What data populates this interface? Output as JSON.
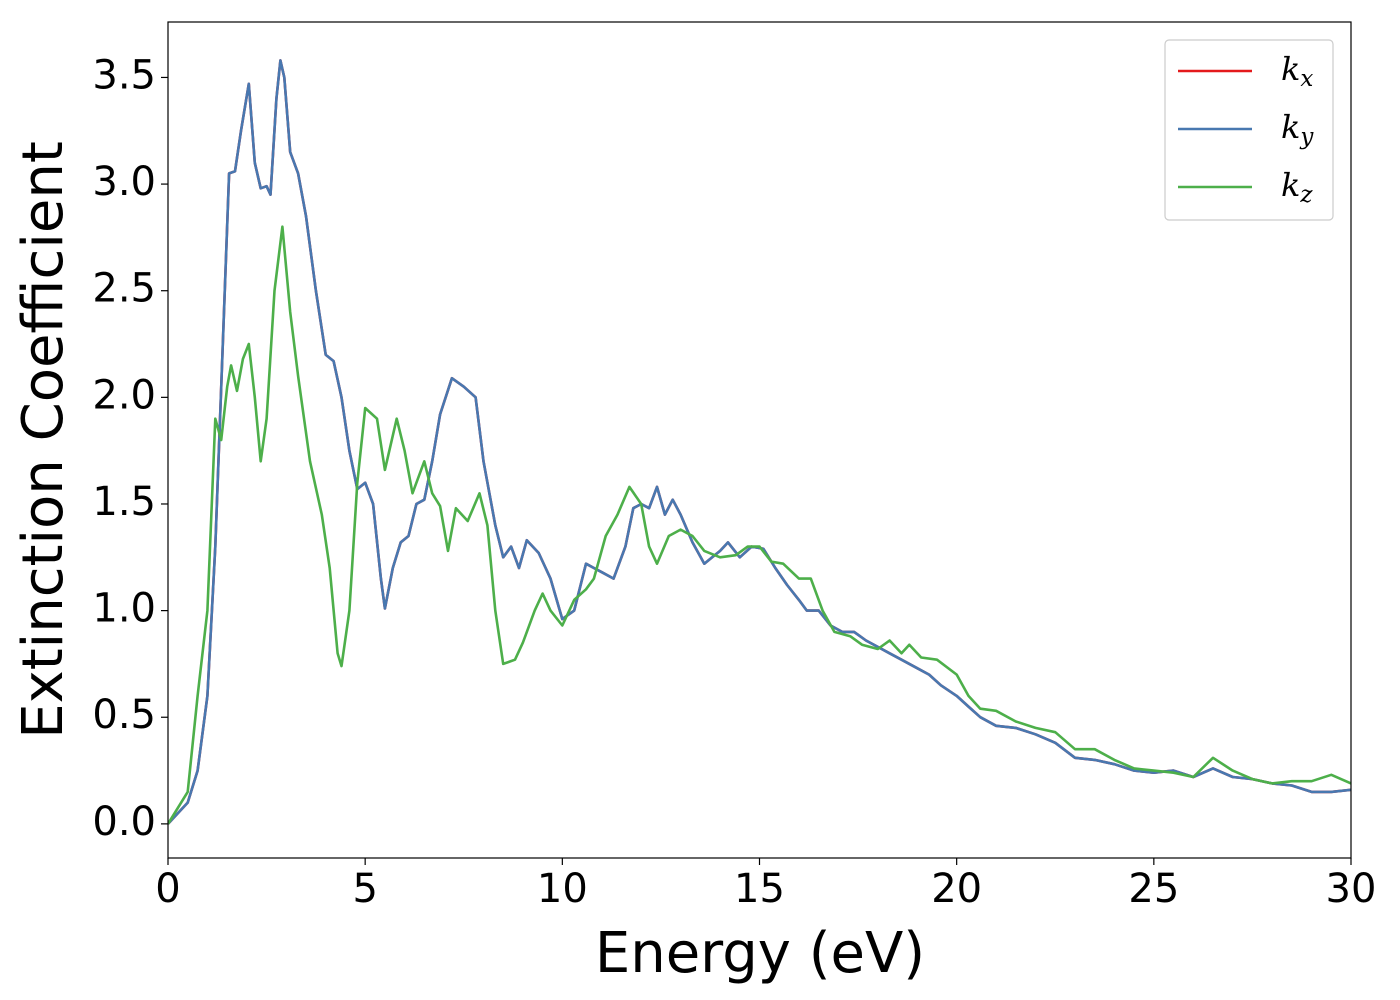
{
  "chart_data": {
    "type": "line",
    "xlabel": "Energy (eV)",
    "ylabel": "Extinction Coefficient",
    "xlim": [
      0,
      30
    ],
    "ylim": [
      -0.16,
      3.76
    ],
    "xticks": [
      0,
      5,
      10,
      15,
      20,
      25,
      30
    ],
    "yticks": [
      {
        "value": 0,
        "label": "0.0"
      },
      0.5,
      {
        "value": 1,
        "label": "1.0"
      },
      1.5,
      {
        "value": 2,
        "label": "2.0"
      },
      2.5,
      {
        "value": 3,
        "label": "3.0"
      },
      3.5
    ],
    "legend": "upper right",
    "series": [
      {
        "name": "kx",
        "color": "#e41a1c",
        "x": [
          0,
          0.5,
          0.75,
          1.0,
          1.2,
          1.4,
          1.55,
          1.7,
          1.85,
          2.05,
          2.2,
          2.35,
          2.5,
          2.6,
          2.75,
          2.85,
          2.95,
          3.1,
          3.3,
          3.5,
          3.75,
          4.0,
          4.2,
          4.4,
          4.6,
          4.8,
          5.0,
          5.2,
          5.4,
          5.5,
          5.7,
          5.9,
          6.1,
          6.3,
          6.5,
          6.7,
          6.9,
          7.2,
          7.5,
          7.8,
          8.0,
          8.3,
          8.5,
          8.7,
          8.9,
          9.1,
          9.4,
          9.7,
          10.0,
          10.3,
          10.6,
          10.8,
          11.0,
          11.3,
          11.6,
          11.8,
          12.0,
          12.2,
          12.4,
          12.6,
          12.8,
          13.0,
          13.3,
          13.6,
          13.8,
          14.0,
          14.2,
          14.5,
          14.8,
          15.1,
          15.4,
          15.7,
          16.0,
          16.2,
          16.5,
          16.8,
          17.1,
          17.4,
          17.7,
          18.0,
          18.3,
          18.6,
          19.0,
          19.3,
          19.6,
          20.0,
          20.3,
          20.6,
          21.0,
          21.5,
          22.0,
          22.5,
          23.0,
          23.5,
          24.0,
          24.5,
          25.0,
          25.5,
          26.0,
          26.5,
          27.0,
          27.5,
          28.0,
          28.5,
          29.0,
          29.5,
          30
        ],
        "values": [
          0,
          0.1,
          0.25,
          0.6,
          1.3,
          2.3,
          3.05,
          3.06,
          3.25,
          3.47,
          3.1,
          2.98,
          2.99,
          2.95,
          3.4,
          3.58,
          3.5,
          3.15,
          3.05,
          2.85,
          2.5,
          2.2,
          2.17,
          2.0,
          1.75,
          1.57,
          1.6,
          1.5,
          1.15,
          1.01,
          1.2,
          1.32,
          1.35,
          1.5,
          1.52,
          1.7,
          1.92,
          2.09,
          2.05,
          2.0,
          1.7,
          1.4,
          1.25,
          1.3,
          1.2,
          1.33,
          1.27,
          1.15,
          0.96,
          1.0,
          1.22,
          1.2,
          1.18,
          1.15,
          1.3,
          1.48,
          1.5,
          1.48,
          1.58,
          1.45,
          1.52,
          1.45,
          1.32,
          1.22,
          1.25,
          1.28,
          1.32,
          1.25,
          1.3,
          1.29,
          1.2,
          1.12,
          1.05,
          1.0,
          1.0,
          0.93,
          0.9,
          0.9,
          0.86,
          0.83,
          0.8,
          0.77,
          0.73,
          0.7,
          0.65,
          0.6,
          0.55,
          0.5,
          0.46,
          0.45,
          0.42,
          0.38,
          0.31,
          0.3,
          0.28,
          0.25,
          0.24,
          0.25,
          0.22,
          0.26,
          0.22,
          0.21,
          0.19,
          0.18,
          0.15,
          0.15,
          0.16
        ]
      },
      {
        "name": "ky",
        "color": "#4878b0",
        "x": [
          0,
          0.5,
          0.75,
          1.0,
          1.2,
          1.4,
          1.55,
          1.7,
          1.85,
          2.05,
          2.2,
          2.35,
          2.5,
          2.6,
          2.75,
          2.85,
          2.95,
          3.1,
          3.3,
          3.5,
          3.75,
          4.0,
          4.2,
          4.4,
          4.6,
          4.8,
          5.0,
          5.2,
          5.4,
          5.5,
          5.7,
          5.9,
          6.1,
          6.3,
          6.5,
          6.7,
          6.9,
          7.2,
          7.5,
          7.8,
          8.0,
          8.3,
          8.5,
          8.7,
          8.9,
          9.1,
          9.4,
          9.7,
          10.0,
          10.3,
          10.6,
          10.8,
          11.0,
          11.3,
          11.6,
          11.8,
          12.0,
          12.2,
          12.4,
          12.6,
          12.8,
          13.0,
          13.3,
          13.6,
          13.8,
          14.0,
          14.2,
          14.5,
          14.8,
          15.1,
          15.4,
          15.7,
          16.0,
          16.2,
          16.5,
          16.8,
          17.1,
          17.4,
          17.7,
          18.0,
          18.3,
          18.6,
          19.0,
          19.3,
          19.6,
          20.0,
          20.3,
          20.6,
          21.0,
          21.5,
          22.0,
          22.5,
          23.0,
          23.5,
          24.0,
          24.5,
          25.0,
          25.5,
          26.0,
          26.5,
          27.0,
          27.5,
          28.0,
          28.5,
          29.0,
          29.5,
          30
        ],
        "values": [
          0,
          0.1,
          0.25,
          0.6,
          1.3,
          2.3,
          3.05,
          3.06,
          3.25,
          3.47,
          3.1,
          2.98,
          2.99,
          2.95,
          3.4,
          3.58,
          3.5,
          3.15,
          3.05,
          2.85,
          2.5,
          2.2,
          2.17,
          2.0,
          1.75,
          1.57,
          1.6,
          1.5,
          1.15,
          1.01,
          1.2,
          1.32,
          1.35,
          1.5,
          1.52,
          1.7,
          1.92,
          2.09,
          2.05,
          2.0,
          1.7,
          1.4,
          1.25,
          1.3,
          1.2,
          1.33,
          1.27,
          1.15,
          0.96,
          1.0,
          1.22,
          1.2,
          1.18,
          1.15,
          1.3,
          1.48,
          1.5,
          1.48,
          1.58,
          1.45,
          1.52,
          1.45,
          1.32,
          1.22,
          1.25,
          1.28,
          1.32,
          1.25,
          1.3,
          1.29,
          1.2,
          1.12,
          1.05,
          1.0,
          1.0,
          0.93,
          0.9,
          0.9,
          0.86,
          0.83,
          0.8,
          0.77,
          0.73,
          0.7,
          0.65,
          0.6,
          0.55,
          0.5,
          0.46,
          0.45,
          0.42,
          0.38,
          0.31,
          0.3,
          0.28,
          0.25,
          0.24,
          0.25,
          0.22,
          0.26,
          0.22,
          0.21,
          0.19,
          0.18,
          0.15,
          0.15,
          0.16
        ]
      },
      {
        "name": "kz",
        "color": "#4daf4a",
        "x": [
          0,
          0.5,
          0.75,
          1.0,
          1.2,
          1.35,
          1.5,
          1.6,
          1.75,
          1.9,
          2.05,
          2.2,
          2.35,
          2.5,
          2.7,
          2.9,
          3.1,
          3.3,
          3.6,
          3.9,
          4.1,
          4.3,
          4.4,
          4.6,
          4.8,
          5.0,
          5.3,
          5.5,
          5.8,
          6.0,
          6.2,
          6.5,
          6.7,
          6.9,
          7.1,
          7.3,
          7.6,
          7.9,
          8.1,
          8.3,
          8.5,
          8.8,
          9.0,
          9.3,
          9.5,
          9.7,
          10.0,
          10.3,
          10.6,
          10.8,
          11.1,
          11.4,
          11.7,
          12.0,
          12.2,
          12.4,
          12.7,
          13.0,
          13.3,
          13.6,
          14.0,
          14.4,
          14.7,
          15.0,
          15.3,
          15.6,
          16.0,
          16.3,
          16.6,
          16.9,
          17.3,
          17.6,
          18.0,
          18.3,
          18.6,
          18.8,
          19.1,
          19.5,
          20.0,
          20.3,
          20.6,
          21.0,
          21.5,
          22.0,
          22.5,
          23.0,
          23.5,
          24.0,
          24.5,
          25.0,
          25.5,
          26.0,
          26.5,
          27.0,
          27.5,
          28.0,
          28.5,
          29.0,
          29.5,
          30
        ],
        "values": [
          0,
          0.15,
          0.6,
          1.0,
          1.9,
          1.8,
          2.05,
          2.15,
          2.03,
          2.18,
          2.25,
          2.0,
          1.7,
          1.9,
          2.5,
          2.8,
          2.4,
          2.1,
          1.7,
          1.45,
          1.2,
          0.8,
          0.74,
          1.0,
          1.6,
          1.95,
          1.9,
          1.66,
          1.9,
          1.75,
          1.55,
          1.7,
          1.55,
          1.49,
          1.28,
          1.48,
          1.42,
          1.55,
          1.4,
          1.0,
          0.75,
          0.77,
          0.85,
          1.0,
          1.08,
          1.0,
          0.93,
          1.05,
          1.1,
          1.15,
          1.35,
          1.45,
          1.58,
          1.5,
          1.3,
          1.22,
          1.35,
          1.38,
          1.35,
          1.28,
          1.25,
          1.26,
          1.3,
          1.3,
          1.23,
          1.22,
          1.15,
          1.15,
          1.0,
          0.9,
          0.88,
          0.84,
          0.82,
          0.86,
          0.8,
          0.84,
          0.78,
          0.77,
          0.7,
          0.6,
          0.54,
          0.53,
          0.48,
          0.45,
          0.43,
          0.35,
          0.35,
          0.3,
          0.26,
          0.25,
          0.24,
          0.22,
          0.31,
          0.25,
          0.21,
          0.19,
          0.2,
          0.2,
          0.23,
          0.19
        ]
      }
    ]
  }
}
